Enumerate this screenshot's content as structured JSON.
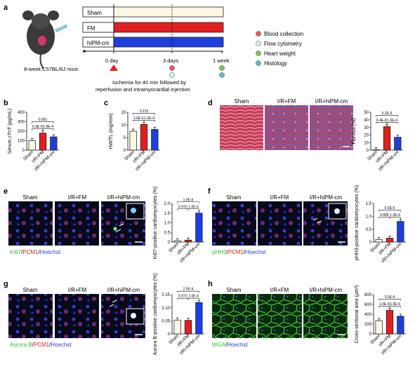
{
  "colors": {
    "sham": "#fdf6e3",
    "fm": "#e02020",
    "hipm": "#1e3fdc",
    "blood": "#e45a5a",
    "flow": "#d6efe0",
    "heart": "#86c24a",
    "histo": "#5bbccc"
  },
  "panel_a": {
    "letter": "a",
    "mouse_label": "8-week C57BL/6J mice",
    "groups": [
      "Sham",
      "FM",
      "hiPM-cm"
    ],
    "timepoints": [
      "0 day",
      "3 days",
      "1 week"
    ],
    "caption_line1": "Ischemia for 40 min followed by",
    "caption_line2": "reperfusion and intramyocardial injection",
    "legend": [
      {
        "label": "Blood collection",
        "color": "#e45a5a"
      },
      {
        "label": "Flow cytometry",
        "color": "#d6efe0"
      },
      {
        "label": "Heart weight",
        "color": "#86c24a"
      },
      {
        "label": "Histology",
        "color": "#5bbccc"
      }
    ]
  },
  "labels": {
    "b": "b",
    "c": "c",
    "d": "d",
    "e": "e",
    "f": "f",
    "g": "g",
    "h": "h",
    "sham": "Sham",
    "irfm": "I/R+FM",
    "irhipm": "I/R+hiPM-cm"
  },
  "stains": {
    "e": [
      {
        "text": "Ki67",
        "color": "#2fbf2f"
      },
      {
        "text": "/",
        "color": "#111"
      },
      {
        "text": "PCM1",
        "color": "#e02020"
      },
      {
        "text": "/",
        "color": "#111"
      },
      {
        "text": "Hoechst",
        "color": "#1e3fdc"
      }
    ],
    "f": [
      {
        "text": "pHH3",
        "color": "#2fbf2f"
      },
      {
        "text": "/",
        "color": "#111"
      },
      {
        "text": "PCM1",
        "color": "#e02020"
      },
      {
        "text": "/",
        "color": "#111"
      },
      {
        "text": "Hoechst",
        "color": "#1e3fdc"
      }
    ],
    "g": [
      {
        "text": "Aurora B",
        "color": "#2fbf2f"
      },
      {
        "text": "/",
        "color": "#111"
      },
      {
        "text": "PCM1",
        "color": "#e02020"
      },
      {
        "text": "/",
        "color": "#111"
      },
      {
        "text": "Hoechst",
        "color": "#1e3fdc"
      }
    ],
    "h": [
      {
        "text": "WGA",
        "color": "#2fbf2f"
      },
      {
        "text": "/",
        "color": "#111"
      },
      {
        "text": "Hoechst",
        "color": "#1e3fdc"
      }
    ]
  },
  "chart_data": [
    {
      "id": "b",
      "type": "bar",
      "ylabel": "Serum cTnT (pg/mL)",
      "ylim": [
        0,
        400
      ],
      "yticks": [
        "0",
        "100",
        "200",
        "300",
        "400"
      ],
      "categories": [
        "Sham",
        "I/R+FM",
        "I/R+hiPM-cm"
      ],
      "values": [
        100,
        180,
        140
      ],
      "pvalues": [
        {
          "a": 0,
          "b": 1,
          "p": "6.3E-6"
        },
        {
          "a": 1,
          "b": 2,
          "p": "6.9E-4"
        },
        {
          "a": 0,
          "b": 2,
          "p": "0.001"
        }
      ]
    },
    {
      "id": "c",
      "type": "bar",
      "ylabel": "HW/TL (mg/mm)",
      "ylim": [
        0,
        15
      ],
      "yticks": [
        "0",
        "5",
        "10",
        "15"
      ],
      "categories": [
        "Sham",
        "I/R+FM",
        "I/R+hiPM-cm"
      ],
      "values": [
        7.5,
        10.2,
        8.2
      ],
      "pvalues": [
        {
          "a": 0,
          "b": 1,
          "p": "1.0E-6"
        },
        {
          "a": 1,
          "b": 2,
          "p": "1.0E-4"
        },
        {
          "a": 0,
          "b": 2,
          "p": "0.215"
        }
      ]
    },
    {
      "id": "d",
      "type": "bar",
      "ylabel": "Fibrosis (%)",
      "ylim": [
        0,
        50
      ],
      "yticks": [
        "0",
        "10",
        "20",
        "30",
        "40",
        "50"
      ],
      "categories": [
        "Sham",
        "I/R+FM",
        "I/R+hiPM-cm"
      ],
      "values": [
        0.5,
        31,
        17
      ],
      "pvalues": [
        {
          "a": 0,
          "b": 1,
          "p": "6.4E-8"
        },
        {
          "a": 1,
          "b": 2,
          "p": "1.6E-4"
        },
        {
          "a": 0,
          "b": 2,
          "p": "6.2E-5"
        }
      ]
    },
    {
      "id": "e",
      "type": "bar",
      "ylabel": "Ki67-positive cardiomyocytes (%)",
      "ylim": [
        0,
        2.0
      ],
      "yticks": [
        "0",
        "0.5",
        "1.0",
        "1.5",
        "2.0"
      ],
      "categories": [
        "Sham",
        "I/R+FM",
        "I/R+hiPM-cm"
      ],
      "values": [
        0.07,
        0.1,
        1.5
      ],
      "pvalues": [
        {
          "a": 0,
          "b": 1,
          "p": "0.970"
        },
        {
          "a": 1,
          "b": 2,
          "p": "1.0E-6"
        },
        {
          "a": 0,
          "b": 2,
          "p": "1.0E-6"
        }
      ]
    },
    {
      "id": "f",
      "type": "bar",
      "ylabel": "pHH3-positive cardiomyocytes (%)",
      "ylim": [
        0,
        1.5
      ],
      "yticks": [
        "0",
        "0.5",
        "1.0",
        "1.5"
      ],
      "categories": [
        "Sham",
        "I/R+FM",
        "I/R+hiPM-cm"
      ],
      "values": [
        0.1,
        0.15,
        0.8
      ],
      "pvalues": [
        {
          "a": 0,
          "b": 1,
          "p": "0.686"
        },
        {
          "a": 1,
          "b": 2,
          "p": "1.0E-6"
        },
        {
          "a": 0,
          "b": 2,
          "p": "6.0E-6"
        }
      ]
    },
    {
      "id": "g",
      "type": "bar",
      "ylabel": "Aurora B-positive cardiomyocytes (%)",
      "ylim": [
        0,
        0.15
      ],
      "yticks": [
        "0",
        "0.05",
        "0.10",
        "0.15"
      ],
      "categories": [
        "Sham",
        "I/R+FM",
        "I/R+hiPM-cm"
      ],
      "values": [
        0.053,
        0.052,
        0.12
      ],
      "pvalues": [
        {
          "a": 0,
          "b": 1,
          "p": "0.970"
        },
        {
          "a": 1,
          "b": 2,
          "p": "2.0E-6"
        },
        {
          "a": 0,
          "b": 2,
          "p": "2.0E-6"
        }
      ]
    },
    {
      "id": "h",
      "type": "bar",
      "ylabel": "Cross-sectional area (μm²)",
      "ylim": [
        0,
        800
      ],
      "yticks": [
        "0",
        "200",
        "400",
        "600",
        "800"
      ],
      "categories": [
        "Sham",
        "I/R+FM",
        "I/R+hiPM-cm"
      ],
      "values": [
        270,
        480,
        360
      ],
      "pvalues": [
        {
          "a": 0,
          "b": 1,
          "p": "1.0E-6"
        },
        {
          "a": 1,
          "b": 2,
          "p": "6.0E-6"
        },
        {
          "a": 0,
          "b": 2,
          "p": "3.0E-6"
        }
      ]
    }
  ]
}
